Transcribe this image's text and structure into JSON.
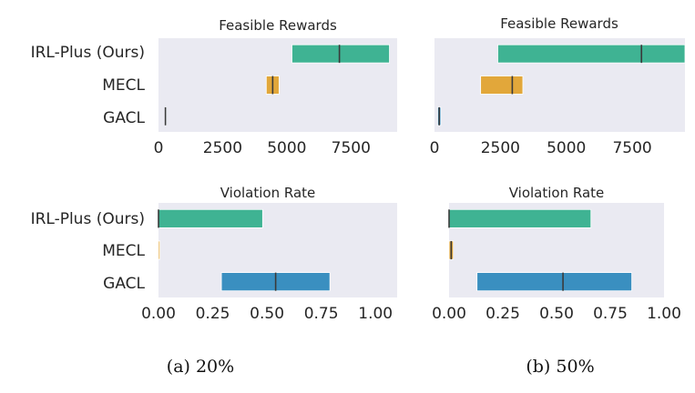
{
  "colors": {
    "IRL-Plus (Ours)": "#3fb393",
    "MECL": "#e2a73a",
    "GACL": "#3a8fc0",
    "panel_bg": "#eaeaf2",
    "median": "#3a3a3a"
  },
  "captions": [
    "(a) 20%",
    "(b) 50%"
  ],
  "chart_data": [
    {
      "type": "bar",
      "subtype": "floating-range",
      "title": "Feasible Rewards",
      "categories": [
        "IRL-Plus (Ours)",
        "MECL",
        "GACL"
      ],
      "series": [
        {
          "name": "IRL-Plus (Ours)",
          "low": 5200,
          "median": 7050,
          "high": 9000
        },
        {
          "name": "MECL",
          "low": 4200,
          "median": 4450,
          "high": 4700
        },
        {
          "name": "GACL",
          "low": 250,
          "median": 270,
          "high": 290
        }
      ],
      "xlim": [
        0,
        9300
      ],
      "xticks": [
        0,
        2500,
        5000,
        7500
      ],
      "xticklabels": [
        "0",
        "2500",
        "5000",
        "7500"
      ],
      "grid": false
    },
    {
      "type": "bar",
      "subtype": "floating-range",
      "title": "Feasible Rewards",
      "categories": [
        "IRL-Plus (Ours)",
        "MECL",
        "GACL"
      ],
      "series": [
        {
          "name": "IRL-Plus (Ours)",
          "low": 2400,
          "median": 7850,
          "high": 9500
        },
        {
          "name": "MECL",
          "low": 1750,
          "median": 2950,
          "high": 3350
        },
        {
          "name": "GACL",
          "low": 120,
          "median": 180,
          "high": 240
        }
      ],
      "xlim": [
        0,
        9500
      ],
      "xticks": [
        0,
        2500,
        5000,
        7500
      ],
      "xticklabels": [
        "0",
        "2500",
        "5000",
        "7500"
      ],
      "grid": false
    },
    {
      "type": "bar",
      "subtype": "floating-range",
      "title": "Violation Rate",
      "categories": [
        "IRL-Plus (Ours)",
        "MECL",
        "GACL"
      ],
      "series": [
        {
          "name": "IRL-Plus (Ours)",
          "low": 0.0,
          "median": 0.0,
          "high": 0.48
        },
        {
          "name": "MECL",
          "low": 0.0,
          "median": 0.0,
          "high": 0.0
        },
        {
          "name": "GACL",
          "low": 0.29,
          "median": 0.54,
          "high": 0.79
        }
      ],
      "xlim": [
        0,
        1.1
      ],
      "xticks": [
        0.0,
        0.25,
        0.5,
        0.75,
        1.0
      ],
      "xticklabels": [
        "0.00",
        "0.25",
        "0.50",
        "0.75",
        "1.00"
      ],
      "grid": false
    },
    {
      "type": "bar",
      "subtype": "floating-range",
      "title": "Violation Rate",
      "categories": [
        "IRL-Plus (Ours)",
        "MECL",
        "GACL"
      ],
      "series": [
        {
          "name": "IRL-Plus (Ours)",
          "low": 0.0,
          "median": 0.0,
          "high": 0.66
        },
        {
          "name": "MECL",
          "low": 0.0,
          "median": 0.01,
          "high": 0.02
        },
        {
          "name": "GACL",
          "low": 0.13,
          "median": 0.53,
          "high": 0.85
        }
      ],
      "xlim": [
        0,
        1.0
      ],
      "xticks": [
        0.0,
        0.25,
        0.5,
        0.75,
        1.0
      ],
      "xticklabels": [
        "0.00",
        "0.25",
        "0.50",
        "0.75",
        "1.00"
      ],
      "grid": false
    }
  ]
}
